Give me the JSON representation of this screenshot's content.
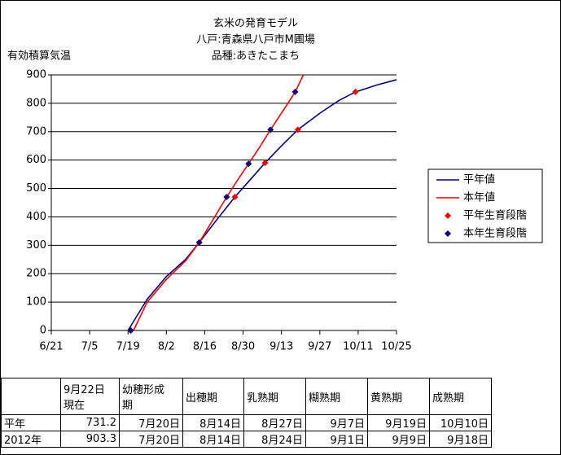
{
  "chart_data": {
    "type": "line",
    "title": [
      "玄米の発育モデル",
      "八戸:青森県八戸市M圃場",
      "品種:あきたこまち"
    ],
    "y_label": "有効積算気温",
    "xlim": [
      "6/21",
      "10/25"
    ],
    "xticks": [
      "6/21",
      "7/5",
      "7/19",
      "8/2",
      "8/16",
      "8/30",
      "9/13",
      "9/27",
      "10/11",
      "10/25"
    ],
    "ylim": [
      0,
      900
    ],
    "yticks": [
      0,
      100,
      200,
      300,
      400,
      500,
      600,
      700,
      800,
      900
    ],
    "grid": true,
    "series": [
      {
        "name": "平年値",
        "style": "line",
        "color": "#000080",
        "x": [
          "7/19",
          "7/26",
          "8/2",
          "8/9",
          "8/14",
          "8/20",
          "8/27",
          "9/2",
          "9/7",
          "9/13",
          "9/19",
          "9/27",
          "10/4",
          "10/10",
          "10/18",
          "10/25"
        ],
        "values": [
          0,
          110,
          190,
          250,
          310,
          385,
          470,
          535,
          590,
          650,
          707,
          765,
          810,
          840,
          865,
          883
        ]
      },
      {
        "name": "本年値",
        "style": "line",
        "color": "#ff0000",
        "x": [
          "7/21",
          "7/26",
          "8/2",
          "8/9",
          "8/14",
          "8/19",
          "8/24",
          "8/28",
          "9/1",
          "9/5",
          "9/9",
          "9/14",
          "9/18",
          "9/21"
        ],
        "values": [
          0,
          100,
          180,
          245,
          310,
          390,
          470,
          530,
          587,
          645,
          707,
          780,
          840,
          900
        ]
      },
      {
        "name": "平年生育段階",
        "style": "marker",
        "color": "#ff0000",
        "x": [
          "7/20",
          "8/14",
          "8/27",
          "9/7",
          "9/19",
          "10/10"
        ],
        "values": [
          0,
          310,
          470,
          590,
          707,
          840
        ]
      },
      {
        "name": "本年生育段階",
        "style": "marker",
        "color": "#000080",
        "x": [
          "7/20",
          "8/14",
          "8/24",
          "9/1",
          "9/9",
          "9/18"
        ],
        "values": [
          0,
          310,
          470,
          587,
          707,
          840
        ]
      }
    ]
  },
  "table": {
    "header": [
      "",
      "9月22日\n現在",
      "幼穂形成\n期",
      "出穂期",
      "乳熟期",
      "糊熟期",
      "黄熟期",
      "成熟期"
    ],
    "rows": [
      [
        "平年",
        731.2,
        "7月20日",
        "8月14日",
        "8月27日",
        "9月7日",
        "9月19日",
        "10月10日"
      ],
      [
        "2012年",
        903.3,
        "7月20日",
        "8月14日",
        "8月24日",
        "9月1日",
        "9月9日",
        "9月18日"
      ]
    ]
  }
}
